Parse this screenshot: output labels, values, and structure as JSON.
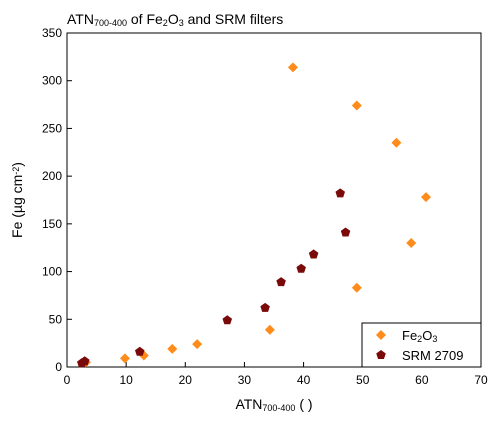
{
  "chart_data": {
    "type": "scatter",
    "title": {
      "parts": [
        {
          "text": "ATN",
          "style": "normal"
        },
        {
          "text": "700-400",
          "style": "sub"
        },
        {
          "text": " of Fe",
          "style": "normal"
        },
        {
          "text": "2",
          "style": "sub"
        },
        {
          "text": "O",
          "style": "normal"
        },
        {
          "text": "3",
          "style": "sub"
        },
        {
          "text": " and SRM filters",
          "style": "normal"
        }
      ]
    },
    "xlabel": {
      "parts": [
        {
          "text": "ATN",
          "style": "normal"
        },
        {
          "text": "700-400",
          "style": "sub"
        },
        {
          "text": " ( )",
          "style": "normal"
        }
      ]
    },
    "ylabel": {
      "parts": [
        {
          "text": "Fe (µg cm",
          "style": "normal"
        },
        {
          "text": "-2",
          "style": "sup"
        },
        {
          "text": ")",
          "style": "normal"
        }
      ]
    },
    "xlim": [
      0,
      70
    ],
    "ylim": [
      0,
      350
    ],
    "xticks": [
      0,
      10,
      20,
      30,
      40,
      50,
      60,
      70
    ],
    "yticks": [
      0,
      50,
      100,
      150,
      200,
      250,
      300,
      350
    ],
    "grid": false,
    "legend_position": "bottom-right",
    "series": [
      {
        "name": "Fe2O3",
        "legend_parts": [
          {
            "text": "Fe",
            "style": "normal"
          },
          {
            "text": "2",
            "style": "sub"
          },
          {
            "text": "O",
            "style": "normal"
          },
          {
            "text": "3",
            "style": "sub"
          }
        ],
        "marker": "diamond",
        "color": "#FF8C1A",
        "points": [
          {
            "x": 3.2,
            "y": 5
          },
          {
            "x": 9.8,
            "y": 9
          },
          {
            "x": 13.0,
            "y": 12
          },
          {
            "x": 17.8,
            "y": 19
          },
          {
            "x": 22.0,
            "y": 24
          },
          {
            "x": 34.3,
            "y": 39
          },
          {
            "x": 38.2,
            "y": 314
          },
          {
            "x": 49.0,
            "y": 274
          },
          {
            "x": 49.0,
            "y": 83
          },
          {
            "x": 55.7,
            "y": 235
          },
          {
            "x": 58.2,
            "y": 130
          },
          {
            "x": 60.7,
            "y": 178
          }
        ]
      },
      {
        "name": "SRM 2709",
        "legend_parts": [
          {
            "text": "SRM 2709",
            "style": "normal"
          }
        ],
        "marker": "pentagon",
        "color": "#7A0A0A",
        "points": [
          {
            "x": 2.5,
            "y": 4
          },
          {
            "x": 3.0,
            "y": 6
          },
          {
            "x": 12.3,
            "y": 16
          },
          {
            "x": 27.1,
            "y": 49
          },
          {
            "x": 33.5,
            "y": 62
          },
          {
            "x": 36.2,
            "y": 89
          },
          {
            "x": 39.6,
            "y": 103
          },
          {
            "x": 41.7,
            "y": 118
          },
          {
            "x": 46.2,
            "y": 182
          },
          {
            "x": 47.1,
            "y": 141
          }
        ]
      }
    ]
  }
}
